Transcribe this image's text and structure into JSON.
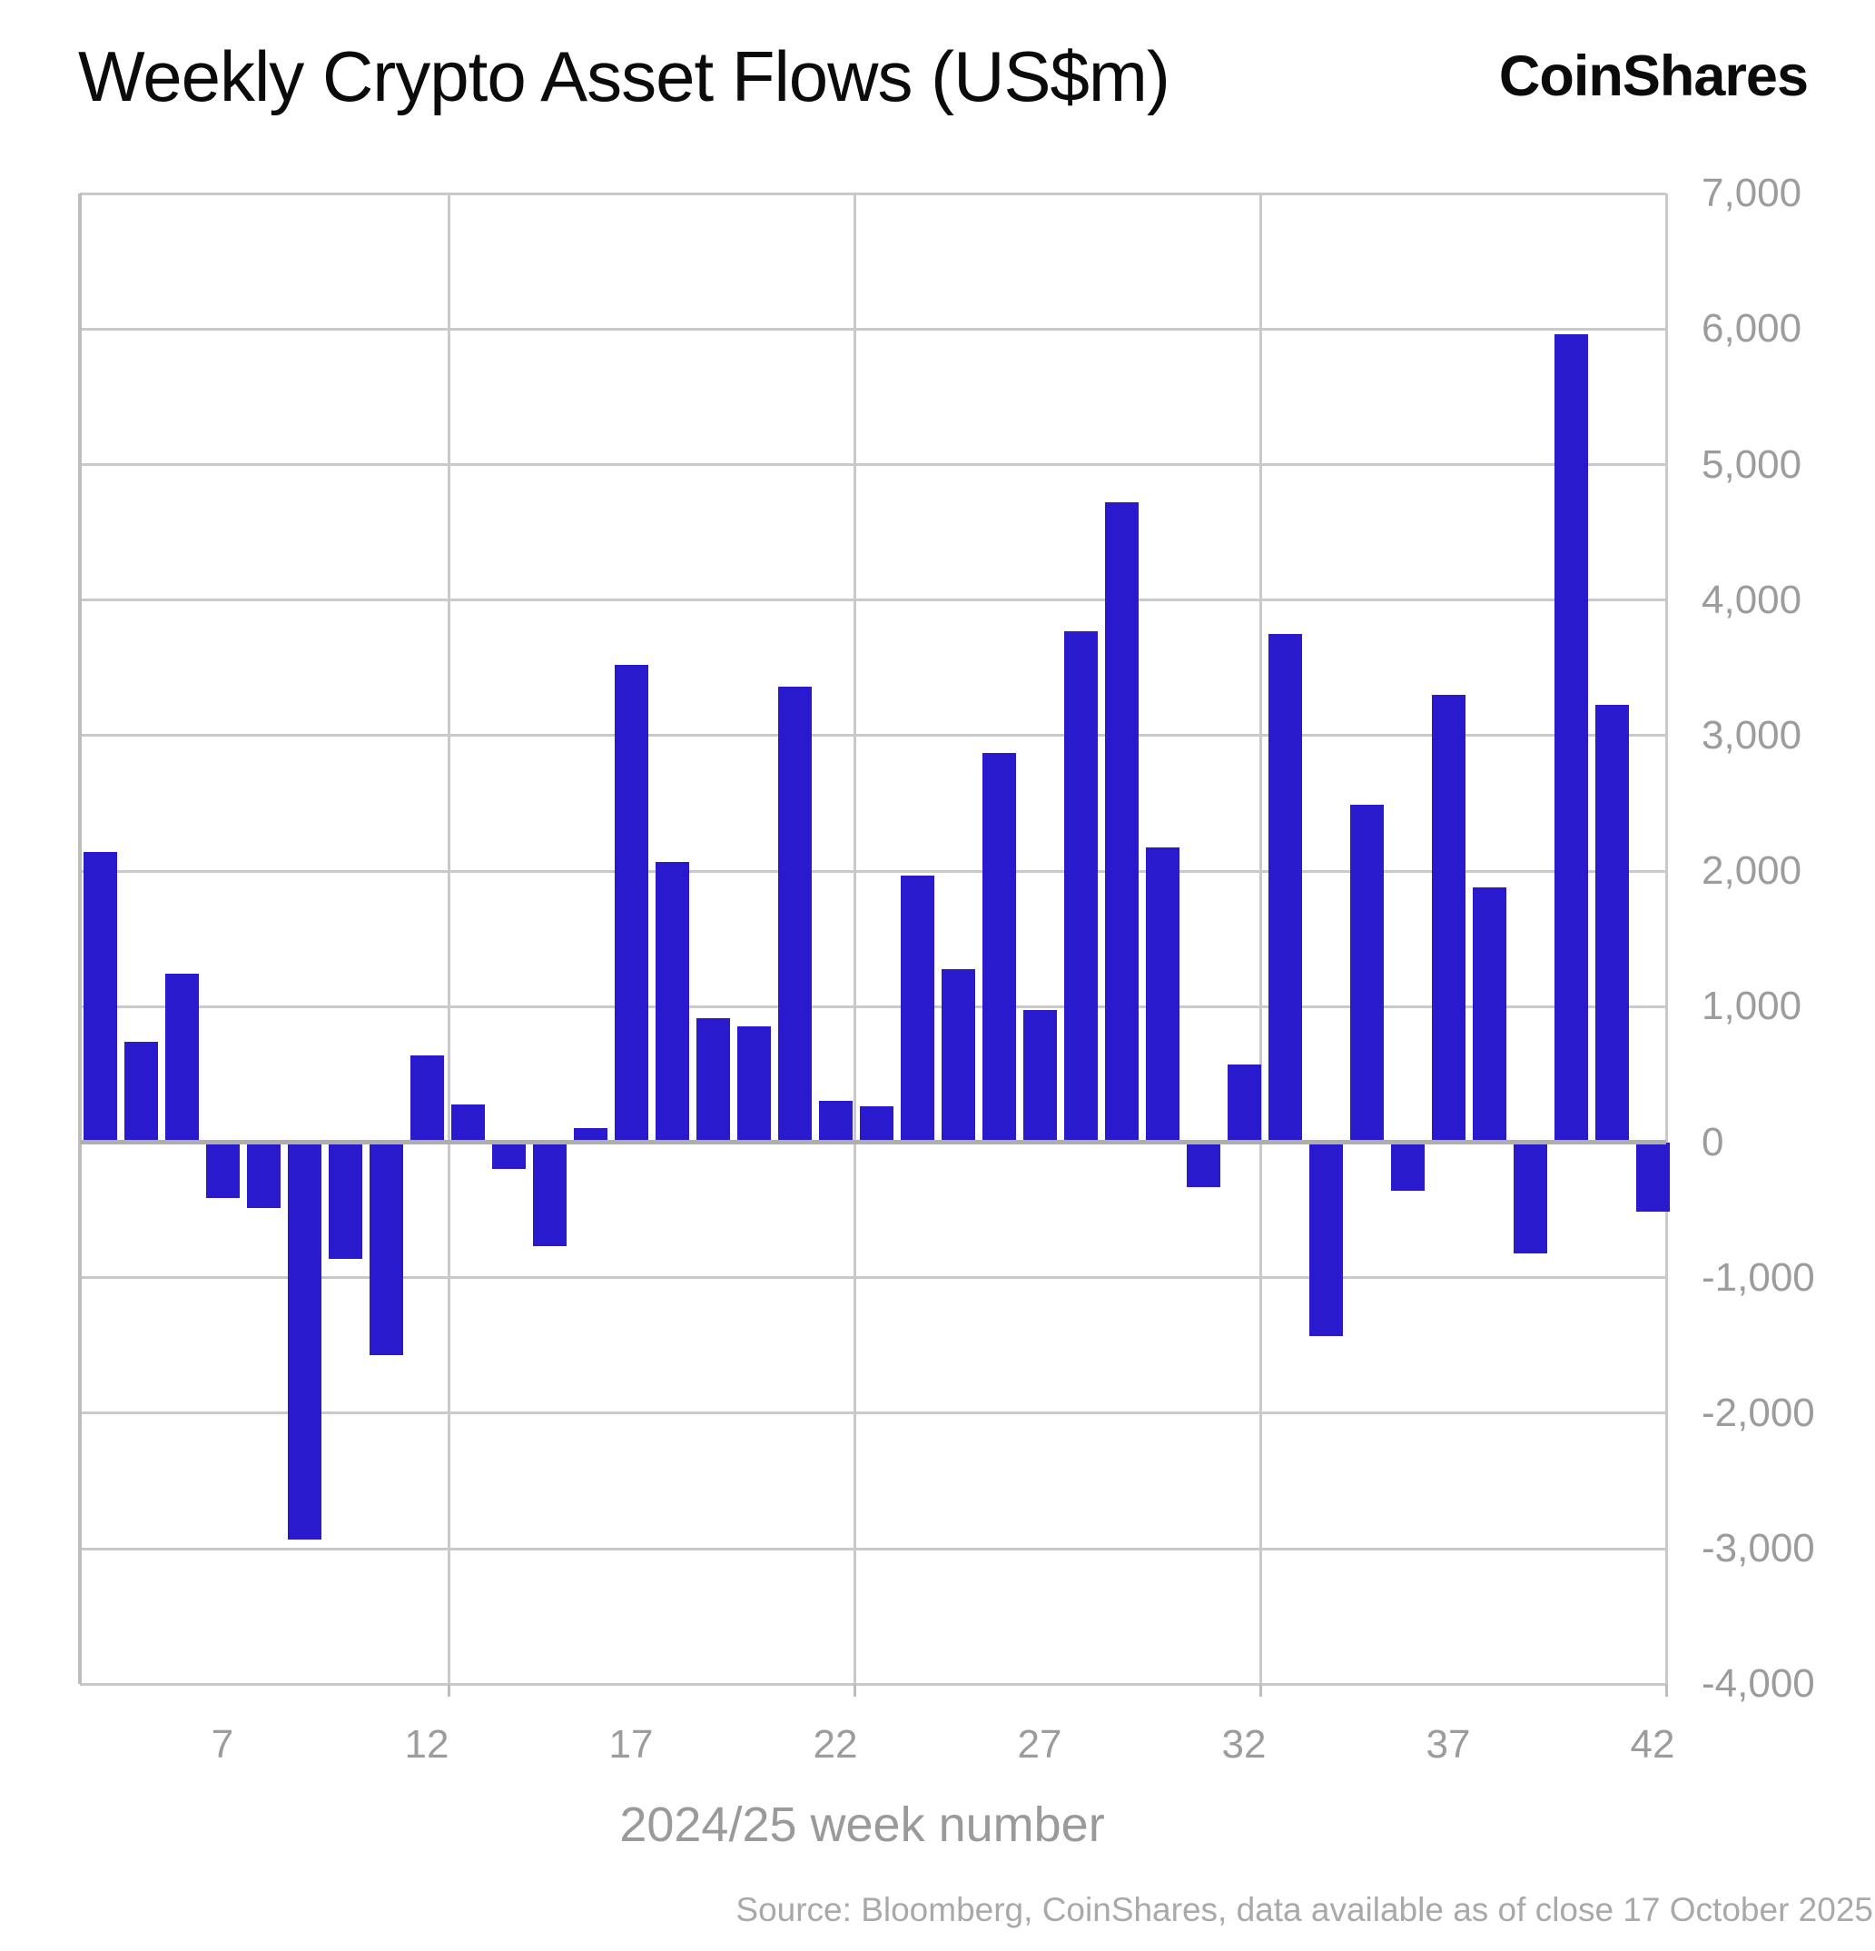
{
  "header": {
    "title": "Weekly Crypto Asset Flows (US$m)",
    "logo_text": "CoinShares"
  },
  "footer": {
    "source": "Source: Bloomberg, CoinShares, data available as of close 17 October 2025"
  },
  "chart_data": {
    "type": "bar",
    "title": "Weekly Crypto Asset Flows (US$m)",
    "xlabel": "2024/25 week number",
    "ylabel": "",
    "bar_color": "#2a1ace",
    "grid": true,
    "ylim": [
      -4000,
      7000
    ],
    "y_ticks": [
      7000,
      6000,
      5000,
      4000,
      3000,
      2000,
      1000,
      0,
      -1000,
      -2000,
      -3000,
      -4000
    ],
    "x_label_ticks": [
      7,
      12,
      17,
      22,
      27,
      32,
      37,
      42
    ],
    "weeks": [
      4,
      5,
      6,
      7,
      8,
      9,
      10,
      11,
      12,
      13,
      14,
      15,
      16,
      17,
      18,
      19,
      20,
      21,
      22,
      23,
      24,
      25,
      26,
      27,
      28,
      29,
      30,
      31,
      32,
      33,
      34,
      35,
      36,
      37,
      38,
      39,
      40,
      41,
      42
    ],
    "values": [
      2140,
      740,
      1245,
      -415,
      -485,
      -2930,
      -860,
      -1570,
      640,
      280,
      -195,
      -770,
      105,
      3520,
      2065,
      915,
      855,
      3360,
      307,
      265,
      1970,
      1280,
      2870,
      975,
      3770,
      4720,
      2175,
      -335,
      570,
      3750,
      -1430,
      2490,
      -360,
      3300,
      1880,
      -820,
      5960,
      3230,
      -515
    ]
  }
}
